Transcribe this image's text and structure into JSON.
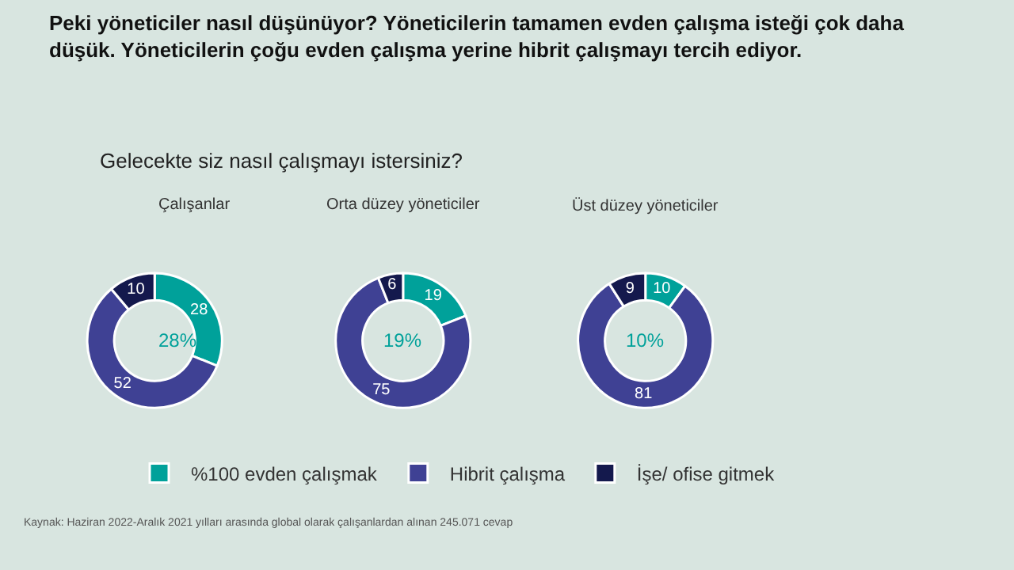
{
  "chart_data": [
    {
      "type": "donut",
      "title": "Çalışanlar",
      "categories": [
        "%100 evden çalışmak",
        "Hibrit çalışma",
        "İşe/ ofise gitmek"
      ],
      "values": [
        28,
        52,
        10
      ],
      "colors": [
        "#00a19a",
        "#3f4194",
        "#14194d"
      ],
      "data_labels": true,
      "legend": "bottom",
      "annotations": [
        "Peki yöneticiler nasıl düşünüyor? Yöneticilerin tamamen evden çalışma isteği çok daha düşük. Yöneticilerin çoğu evden çalışma yerine hibrit çalışmayı tercih ediyor.",
        "Gelecekte siz nasıl çalışmayı istersiniz?",
        "Kaynak: Haziran 2022-Aralık 2021 yılları arasında global olarak çalışanlardan alınan 245.071 cevap",
        "28%"
      ]
    },
    {
      "type": "donut",
      "title": "Orta düzey yöneticiler",
      "categories": [
        null,
        null,
        null
      ],
      "values": [
        19,
        75,
        6
      ],
      "colors": [
        "#00a19a",
        "#3f4194",
        "#14194d"
      ],
      "data_labels": true,
      "annotations": [
        "19%"
      ]
    },
    {
      "type": "donut",
      "title": "Üst düzey yöneticiler",
      "categories": [
        null,
        null,
        null
      ],
      "values": [
        10,
        81,
        9
      ],
      "colors": [
        "#00a19a",
        "#3f4194",
        "#14194d"
      ],
      "data_labels": true,
      "annotations": [
        "10%"
      ]
    }
  ]
}
